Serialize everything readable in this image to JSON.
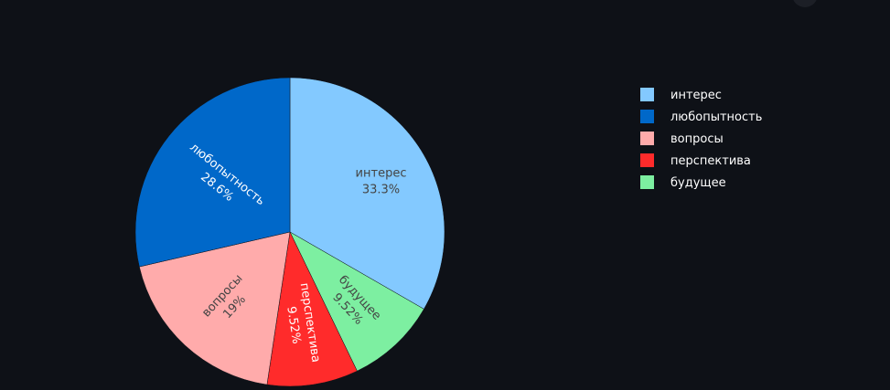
{
  "chart_data": {
    "type": "pie",
    "categories": [
      "интерес",
      "любопытность",
      "вопросы",
      "перспектива",
      "будущее"
    ],
    "values": [
      33.3,
      28.6,
      19,
      9.52,
      9.52
    ],
    "labels_pct": [
      "33.3%",
      "28.6%",
      "19%",
      "9.52%",
      "9.52%"
    ],
    "colors": [
      "#83c9ff",
      "#0068c9",
      "#ffabab",
      "#ff2b2b",
      "#7defa1"
    ],
    "label_colors": [
      "#444444",
      "#ffffff",
      "#444444",
      "#ffffff",
      "#444444"
    ],
    "order": [
      "интерес",
      "будущее",
      "перспектива",
      "вопросы",
      "любопытность"
    ],
    "legend": {
      "position": "right",
      "items": [
        {
          "label": "интерес",
          "color": "#83c9ff"
        },
        {
          "label": "любопытность",
          "color": "#0068c9"
        },
        {
          "label": "вопросы",
          "color": "#ffabab"
        },
        {
          "label": "перспектива",
          "color": "#ff2b2b"
        },
        {
          "label": "будущее",
          "color": "#7defa1"
        }
      ]
    },
    "title": ""
  }
}
